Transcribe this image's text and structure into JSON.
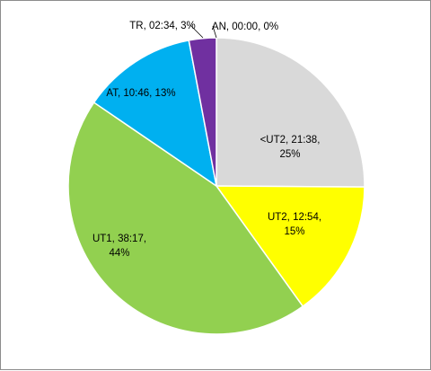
{
  "chart_data": {
    "type": "pie",
    "title": "",
    "start_angle_deg": 0,
    "direction": "clockwise",
    "slices": [
      {
        "name": "<UT2",
        "time": "21:38",
        "percent": "25%",
        "value": 21.633,
        "color": "#d9d9d9",
        "label_lines": [
          "<UT2,  21:38,",
          "25%"
        ]
      },
      {
        "name": "UT2",
        "time": "12:54",
        "percent": "15%",
        "value": 12.9,
        "color": "#ffff00",
        "label_lines": [
          "UT2,  12:54,",
          "15%"
        ]
      },
      {
        "name": "UT1",
        "time": "38:17",
        "percent": "44%",
        "value": 38.283,
        "color": "#92d050",
        "label_lines": [
          "UT1,  38:17,",
          "44%"
        ]
      },
      {
        "name": "AT",
        "time": "10:46",
        "percent": "13%",
        "value": 10.767,
        "color": "#00b0f0",
        "label_lines": [
          "AT,  10:46, 13%"
        ]
      },
      {
        "name": "TR",
        "time": "02:34",
        "percent": "3%",
        "value": 2.567,
        "color": "#7030a0",
        "label_lines": [
          "TR,  02:34, 3%"
        ]
      },
      {
        "name": "AN",
        "time": "00:00",
        "percent": "0%",
        "value": 0,
        "color": "#c00000",
        "label_lines": [
          "AN,  00:00, 0%"
        ]
      }
    ],
    "legend": "none"
  }
}
